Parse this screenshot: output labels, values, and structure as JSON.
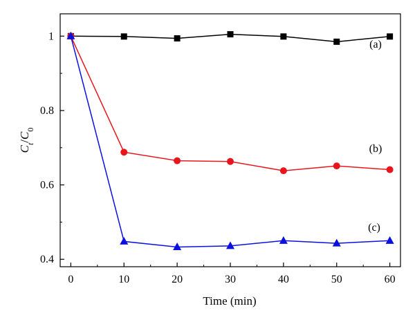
{
  "chart_data": {
    "type": "line",
    "title": "",
    "xlabel": "Time (min)",
    "ylabel": {
      "main": "C",
      "main_sub": "t",
      "sep": "/",
      "den": "C",
      "den_sub": "0"
    },
    "xlim": [
      -2,
      62
    ],
    "ylim": [
      0.38,
      1.06
    ],
    "x_ticks": [
      0,
      10,
      20,
      30,
      40,
      50,
      60
    ],
    "x_tick_labels": [
      "0",
      "10",
      "20",
      "30",
      "40",
      "50",
      "60"
    ],
    "y_ticks": [
      0.4,
      0.6,
      0.8,
      1.0
    ],
    "y_tick_labels": [
      "0.4",
      "0.6",
      "0.8",
      "1"
    ],
    "grid": false,
    "legend": "none",
    "x": [
      0,
      10,
      20,
      30,
      40,
      50,
      60
    ],
    "series": [
      {
        "label": "(a)",
        "color": "#000000",
        "marker": "square",
        "values": [
          1.0,
          0.999,
          0.994,
          1.005,
          0.999,
          0.985,
          0.999
        ]
      },
      {
        "label": "(b)",
        "color": "#e8161c",
        "marker": "circle",
        "values": [
          1.0,
          0.688,
          0.665,
          0.663,
          0.638,
          0.651,
          0.641
        ]
      },
      {
        "label": "(c)",
        "color": "#0a10e0",
        "marker": "triangle",
        "values": [
          1.0,
          0.448,
          0.433,
          0.436,
          0.45,
          0.443,
          0.45
        ]
      }
    ]
  }
}
